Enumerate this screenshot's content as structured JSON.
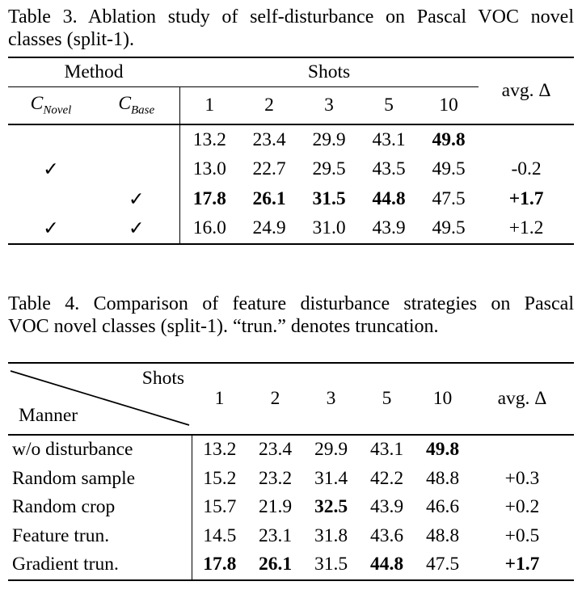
{
  "colors": {
    "text": "#000000",
    "background": "#ffffff",
    "rule": "#000000"
  },
  "table3": {
    "caption_lines": [
      "Table 3. Ablation study of self-disturbance on Pascal VOC novel",
      "classes (split-1)."
    ],
    "method_label": "Method",
    "shots_label": "Shots",
    "avg_label": "avg. Δ",
    "checkmark": "✓",
    "method_cols": [
      {
        "base": "C",
        "sub": "Novel"
      },
      {
        "base": "C",
        "sub": "Base"
      }
    ],
    "shot_cols": [
      "1",
      "2",
      "3",
      "5",
      "10"
    ],
    "rows": [
      {
        "c_novel": false,
        "c_base": false,
        "cells": [
          {
            "t": "13.2"
          },
          {
            "t": "23.4"
          },
          {
            "t": "29.9"
          },
          {
            "t": "43.1"
          },
          {
            "t": "49.8",
            "b": true
          }
        ],
        "avg": {
          "t": ""
        }
      },
      {
        "c_novel": true,
        "c_base": false,
        "cells": [
          {
            "t": "13.0"
          },
          {
            "t": "22.7"
          },
          {
            "t": "29.5"
          },
          {
            "t": "43.5"
          },
          {
            "t": "49.5"
          }
        ],
        "avg": {
          "t": "-0.2"
        }
      },
      {
        "c_novel": false,
        "c_base": true,
        "cells": [
          {
            "t": "17.8",
            "b": true
          },
          {
            "t": "26.1",
            "b": true
          },
          {
            "t": "31.5",
            "b": true
          },
          {
            "t": "44.8",
            "b": true
          },
          {
            "t": "47.5"
          }
        ],
        "avg": {
          "t": "+1.7",
          "b": true
        }
      },
      {
        "c_novel": true,
        "c_base": true,
        "cells": [
          {
            "t": "16.0"
          },
          {
            "t": "24.9"
          },
          {
            "t": "31.0"
          },
          {
            "t": "43.9"
          },
          {
            "t": "49.5"
          }
        ],
        "avg": {
          "t": "+1.2"
        }
      }
    ]
  },
  "table4": {
    "caption_lines": [
      "Table 4. Comparison of feature disturbance strategies on Pascal",
      "VOC novel classes (split-1). “trun.” denotes truncation."
    ],
    "shots_label": "Shots",
    "manner_label": "Manner",
    "avg_label": "avg. Δ",
    "shot_cols": [
      "1",
      "2",
      "3",
      "5",
      "10"
    ],
    "rows": [
      {
        "label": "w/o disturbance",
        "cells": [
          {
            "t": "13.2"
          },
          {
            "t": "23.4"
          },
          {
            "t": "29.9"
          },
          {
            "t": "43.1"
          },
          {
            "t": "49.8",
            "b": true
          }
        ],
        "avg": {
          "t": ""
        }
      },
      {
        "label": "Random sample",
        "cells": [
          {
            "t": "15.2"
          },
          {
            "t": "23.2"
          },
          {
            "t": "31.4"
          },
          {
            "t": "42.2"
          },
          {
            "t": "48.8"
          }
        ],
        "avg": {
          "t": "+0.3"
        }
      },
      {
        "label": "Random crop",
        "cells": [
          {
            "t": "15.7"
          },
          {
            "t": "21.9"
          },
          {
            "t": "32.5",
            "b": true
          },
          {
            "t": "43.9"
          },
          {
            "t": "46.6"
          }
        ],
        "avg": {
          "t": "+0.2"
        }
      },
      {
        "label": "Feature trun.",
        "cells": [
          {
            "t": "14.5"
          },
          {
            "t": "23.1"
          },
          {
            "t": "31.8"
          },
          {
            "t": "43.6"
          },
          {
            "t": "48.8"
          }
        ],
        "avg": {
          "t": "+0.5"
        }
      },
      {
        "label": "Gradient trun.",
        "cells": [
          {
            "t": "17.8",
            "b": true
          },
          {
            "t": "26.1",
            "b": true
          },
          {
            "t": "31.5"
          },
          {
            "t": "44.8",
            "b": true
          },
          {
            "t": "47.5"
          }
        ],
        "avg": {
          "t": "+1.7",
          "b": true
        }
      }
    ]
  }
}
